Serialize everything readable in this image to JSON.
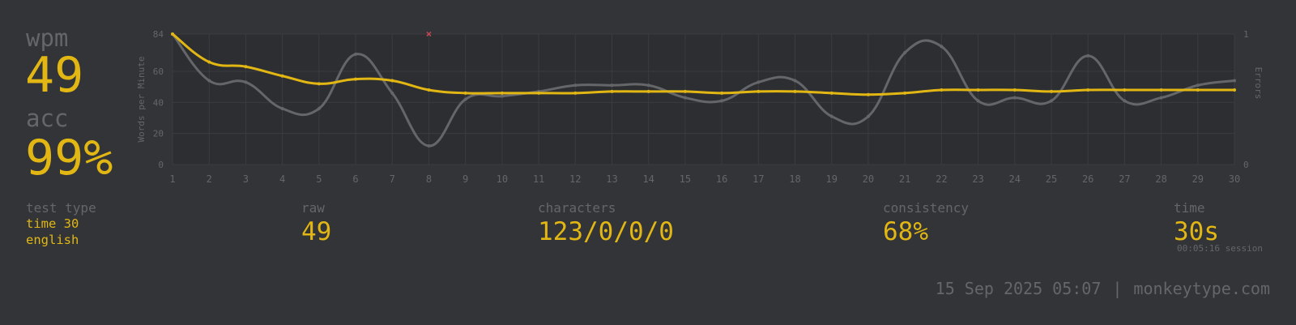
{
  "stats": {
    "wpm_label": "wpm",
    "wpm_value": "49",
    "acc_label": "acc",
    "acc_value": "99%"
  },
  "details": {
    "test_type_label": "test type",
    "test_type_mode": "time 30",
    "test_type_language": "english",
    "raw_label": "raw",
    "raw_value": "49",
    "characters_label": "characters",
    "characters_value": "123/0/0/0",
    "consistency_label": "consistency",
    "consistency_value": "68%",
    "time_label": "time",
    "time_value": "30s",
    "session_text": "00:05:16 session"
  },
  "footer": {
    "date": "15 Sep 2025 05:07",
    "separator": "|",
    "site": "monkeytype.com"
  },
  "colors": {
    "background": "#323437",
    "main": "#e2b714",
    "sub": "#646669",
    "raw_line": "#646669",
    "error": "#ca4754"
  },
  "chart_data": {
    "type": "line",
    "ylabel": "Words per Minute",
    "y2label": "Errors",
    "x": [
      1,
      2,
      3,
      4,
      5,
      6,
      7,
      8,
      9,
      10,
      11,
      12,
      13,
      14,
      15,
      16,
      17,
      18,
      19,
      20,
      21,
      22,
      23,
      24,
      25,
      26,
      27,
      28,
      29,
      30
    ],
    "ylim": [
      0,
      84
    ],
    "yticks": [
      0,
      20,
      40,
      60,
      84
    ],
    "y2lim": [
      0,
      1
    ],
    "y2ticks": [
      0,
      1
    ],
    "grid": true,
    "series": [
      {
        "role": "wpm",
        "values": [
          84,
          66,
          63,
          57,
          52,
          55,
          54,
          48,
          46,
          46,
          46,
          46,
          47,
          47,
          47,
          46,
          47,
          47,
          46,
          45,
          46,
          48,
          48,
          48,
          47,
          48,
          48,
          48,
          48,
          48
        ]
      },
      {
        "role": "raw",
        "values": [
          84,
          54,
          53,
          36,
          36,
          71,
          46,
          12,
          42,
          44,
          47,
          51,
          51,
          51,
          43,
          41,
          53,
          54,
          31,
          31,
          72,
          76,
          41,
          43,
          41,
          70,
          41,
          43,
          51,
          54
        ]
      },
      {
        "role": "errors",
        "points": [
          {
            "x": 8,
            "y": 1
          }
        ]
      }
    ]
  }
}
